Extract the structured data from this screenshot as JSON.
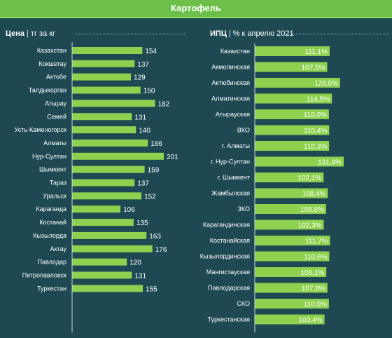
{
  "title": "Картофель",
  "left_header": {
    "bold": "Цена",
    "unit": "тг за кг"
  },
  "right_header": {
    "bold": "ИПЦ",
    "unit": "% к апрелю 2021"
  },
  "colors": {
    "background": "#1e4953",
    "bar": "#8ed14f",
    "banner": "#6cc04a"
  },
  "chart_data": [
    {
      "type": "bar",
      "orientation": "horizontal",
      "title": "Цена | тг за кг",
      "categories": [
        "Казахстан",
        "Кокшетау",
        "Актобе",
        "Талдыкорган",
        "Атырау",
        "Семей",
        "Усть-Каменогорск",
        "Алматы",
        "Нур-Султан",
        "Шымкент",
        "Тараз",
        "Уральск",
        "Караганда",
        "Костанай",
        "Кызылорда",
        "Актау",
        "Павлодар",
        "Петропавловск",
        "Туркестан"
      ],
      "values": [
        154,
        137,
        129,
        150,
        182,
        131,
        140,
        166,
        201,
        159,
        137,
        152,
        106,
        135,
        163,
        176,
        120,
        131,
        155
      ],
      "value_labels": [
        "154",
        "137",
        "129",
        "150",
        "182",
        "131",
        "140",
        "166",
        "201",
        "159",
        "137",
        "152",
        "106",
        "135",
        "163",
        "176",
        "120",
        "131",
        "155"
      ]
    },
    {
      "type": "bar",
      "orientation": "horizontal",
      "title": "ИПЦ | % к апрелю 2021",
      "categories": [
        "Казахстан",
        "Акмолинская",
        "Актюбинская",
        "Алматинская",
        "Атырауская",
        "ВКО",
        "г. Алматы",
        "г. Нур-Султан",
        "г. Шымкент",
        "Жамбылская",
        "ЗКО",
        "Карагандинская",
        "Костанайская",
        "Кызылординская",
        "Мангистауская",
        "Павлодарская",
        "СКО",
        "Туркестанская"
      ],
      "values": [
        111.1,
        107.5,
        126.6,
        114.5,
        110.0,
        110.4,
        110.3,
        131.9,
        102.1,
        108.4,
        105.8,
        102.3,
        111.7,
        110.6,
        106.1,
        107.8,
        110.0,
        103.4
      ],
      "value_labels": [
        "111,1%",
        "107,5%",
        "126,6%",
        "114,5%",
        "110,0%",
        "110,4%",
        "110,3%",
        "131,9%",
        "102,1%",
        "108,4%",
        "105,8%",
        "102,3%",
        "111,7%",
        "110,6%",
        "106,1%",
        "107,8%",
        "110,0%",
        "103,4%"
      ]
    }
  ]
}
